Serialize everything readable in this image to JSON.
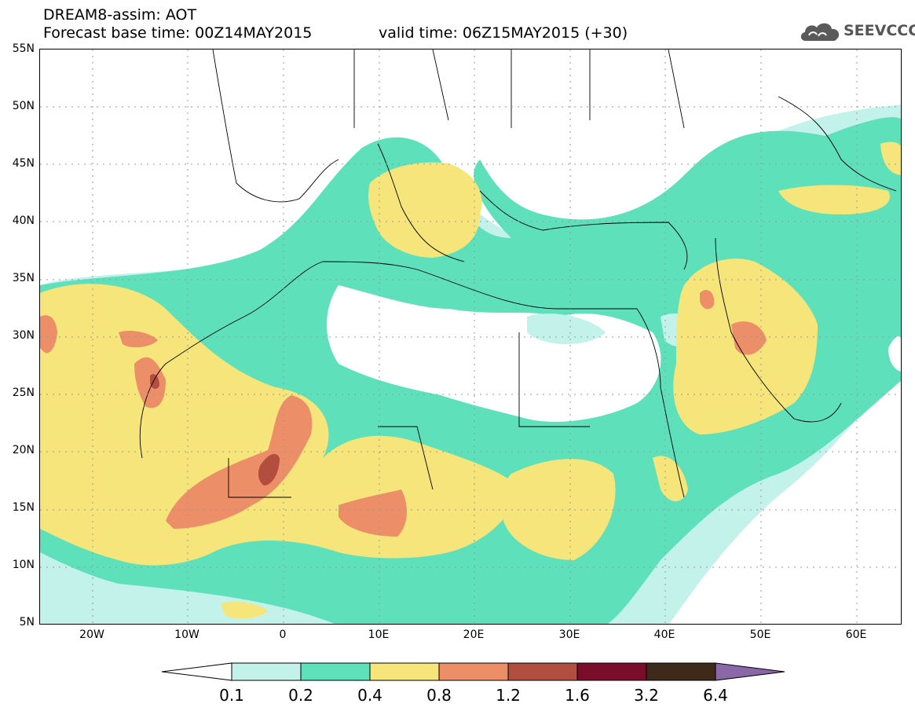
{
  "header": {
    "title": "DREAM8-assim: AOT",
    "base_time": "Forecast base time: 00Z14MAY2015",
    "valid_time": "valid time: 06Z15MAY2015 (+30)",
    "logo_text": "SEEVCCC"
  },
  "axes": {
    "lat_labels": [
      "55N",
      "50N",
      "45N",
      "40N",
      "35N",
      "30N",
      "25N",
      "20N",
      "15N",
      "10N",
      "5N"
    ],
    "lon_labels": [
      "20W",
      "10W",
      "0",
      "10E",
      "20E",
      "30E",
      "40E",
      "50E",
      "60E"
    ]
  },
  "legend": {
    "labels": [
      "0.1",
      "0.2",
      "0.4",
      "0.8",
      "1.2",
      "1.6",
      "3.2",
      "6.4"
    ],
    "colors": [
      "#ffffff",
      "#c2f2ea",
      "#5ee0bb",
      "#f6e57a",
      "#ec8e67",
      "#b24e40",
      "#7a0d2a",
      "#3e2a1a",
      "#8a68a8"
    ]
  }
}
